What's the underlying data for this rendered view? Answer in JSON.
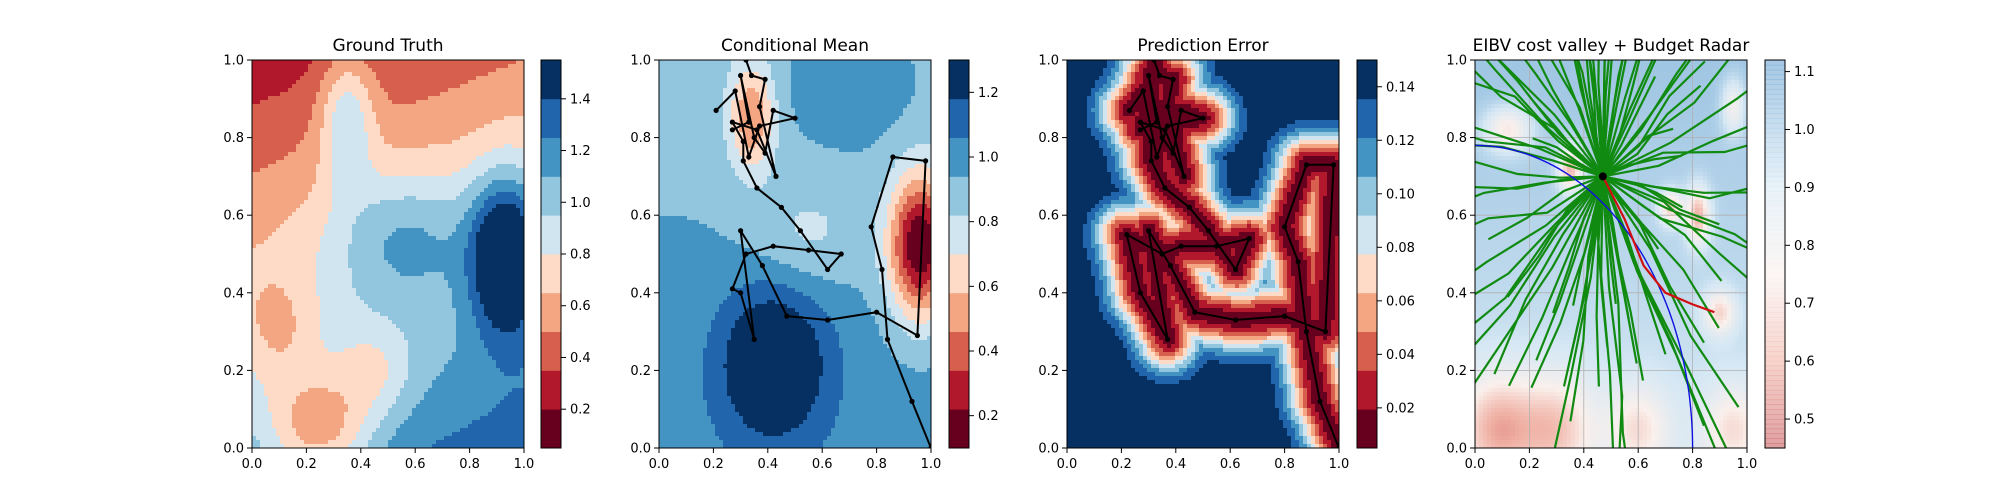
{
  "chart_data": [
    {
      "type": "heatmap",
      "title": "Ground Truth",
      "xlim": [
        0,
        1
      ],
      "ylim": [
        0,
        1
      ],
      "x_ticks": [
        "0.0",
        "0.2",
        "0.4",
        "0.6",
        "0.8",
        "1.0"
      ],
      "y_ticks": [
        "0.0",
        "0.2",
        "0.4",
        "0.6",
        "0.8",
        "1.0"
      ],
      "colorbar": {
        "range": [
          0.05,
          1.55
        ],
        "ticks": [
          0.2,
          0.4,
          0.6,
          0.8,
          1.0,
          1.2,
          1.4
        ],
        "tick_labels": [
          "0.2",
          "0.4",
          "0.6",
          "0.8",
          "1.0",
          "1.2",
          "1.4"
        ]
      },
      "field_kind": "truth",
      "path": []
    },
    {
      "type": "heatmap",
      "title": "Conditional Mean",
      "xlim": [
        0,
        1
      ],
      "ylim": [
        0,
        1
      ],
      "x_ticks": [
        "0.0",
        "0.2",
        "0.4",
        "0.6",
        "0.8",
        "1.0"
      ],
      "y_ticks": [
        "0.0",
        "0.2",
        "0.4",
        "0.6",
        "0.8",
        "1.0"
      ],
      "colorbar": {
        "range": [
          0.1,
          1.3
        ],
        "ticks": [
          0.2,
          0.4,
          0.6,
          0.8,
          1.0,
          1.2
        ],
        "tick_labels": [
          "0.2",
          "0.4",
          "0.6",
          "0.8",
          "1.0",
          "1.2"
        ]
      },
      "field_kind": "mean",
      "path": [
        [
          1.0,
          0.0
        ],
        [
          0.93,
          0.12
        ],
        [
          0.84,
          0.28
        ],
        [
          0.82,
          0.46
        ],
        [
          0.78,
          0.57
        ],
        [
          0.86,
          0.75
        ],
        [
          0.98,
          0.74
        ],
        [
          0.95,
          0.29
        ],
        [
          0.8,
          0.35
        ],
        [
          0.62,
          0.33
        ],
        [
          0.47,
          0.34
        ],
        [
          0.38,
          0.47
        ],
        [
          0.3,
          0.56
        ],
        [
          0.35,
          0.28
        ],
        [
          0.3,
          0.4
        ],
        [
          0.27,
          0.41
        ],
        [
          0.32,
          0.5
        ],
        [
          0.42,
          0.52
        ],
        [
          0.55,
          0.51
        ],
        [
          0.67,
          0.5
        ],
        [
          0.62,
          0.46
        ],
        [
          0.52,
          0.56
        ],
        [
          0.45,
          0.62
        ],
        [
          0.36,
          0.67
        ],
        [
          0.31,
          0.74
        ],
        [
          0.31,
          0.79
        ],
        [
          0.27,
          0.84
        ],
        [
          0.36,
          0.82
        ],
        [
          0.43,
          0.7
        ],
        [
          0.37,
          0.88
        ],
        [
          0.39,
          0.95
        ],
        [
          0.34,
          0.96
        ],
        [
          0.32,
          1.0
        ]
      ],
      "path2": [
        [
          0.21,
          0.87
        ],
        [
          0.28,
          0.92
        ],
        [
          0.33,
          0.75
        ],
        [
          0.37,
          0.83
        ],
        [
          0.5,
          0.85
        ],
        [
          0.42,
          0.87
        ],
        [
          0.39,
          0.76
        ],
        [
          0.35,
          0.8
        ],
        [
          0.3,
          0.96
        ],
        [
          0.33,
          0.84
        ],
        [
          0.27,
          0.82
        ]
      ]
    },
    {
      "type": "heatmap",
      "title": "Prediction Error",
      "xlim": [
        0,
        1
      ],
      "ylim": [
        0,
        1
      ],
      "x_ticks": [
        "0.0",
        "0.2",
        "0.4",
        "0.6",
        "0.8",
        "1.0"
      ],
      "y_ticks": [
        "0.0",
        "0.2",
        "0.4",
        "0.6",
        "0.8",
        "1.0"
      ],
      "colorbar": {
        "range": [
          0.005,
          0.15
        ],
        "ticks": [
          0.02,
          0.04,
          0.06,
          0.08,
          0.1,
          0.12,
          0.14
        ],
        "tick_labels": [
          "0.02",
          "0.04",
          "0.06",
          "0.08",
          "0.10",
          "0.12",
          "0.14"
        ]
      },
      "field_kind": "error",
      "path": [
        [
          1.0,
          0.0
        ],
        [
          0.93,
          0.12
        ],
        [
          0.88,
          0.3
        ],
        [
          0.85,
          0.48
        ],
        [
          0.8,
          0.57
        ],
        [
          0.88,
          0.73
        ],
        [
          0.98,
          0.73
        ],
        [
          0.95,
          0.3
        ],
        [
          0.8,
          0.34
        ],
        [
          0.62,
          0.33
        ],
        [
          0.47,
          0.35
        ],
        [
          0.38,
          0.47
        ],
        [
          0.3,
          0.56
        ],
        [
          0.37,
          0.28
        ],
        [
          0.27,
          0.4
        ],
        [
          0.22,
          0.55
        ],
        [
          0.35,
          0.5
        ],
        [
          0.42,
          0.52
        ],
        [
          0.55,
          0.52
        ],
        [
          0.67,
          0.54
        ],
        [
          0.62,
          0.46
        ],
        [
          0.52,
          0.56
        ],
        [
          0.45,
          0.62
        ],
        [
          0.36,
          0.67
        ],
        [
          0.31,
          0.74
        ],
        [
          0.31,
          0.79
        ],
        [
          0.27,
          0.84
        ],
        [
          0.36,
          0.82
        ],
        [
          0.43,
          0.7
        ],
        [
          0.37,
          0.88
        ],
        [
          0.39,
          0.95
        ],
        [
          0.34,
          0.96
        ],
        [
          0.32,
          1.0
        ]
      ],
      "path2": [
        [
          0.23,
          0.87
        ],
        [
          0.28,
          0.92
        ],
        [
          0.33,
          0.75
        ],
        [
          0.37,
          0.83
        ],
        [
          0.5,
          0.85
        ],
        [
          0.42,
          0.87
        ],
        [
          0.39,
          0.76
        ],
        [
          0.35,
          0.8
        ],
        [
          0.3,
          0.96
        ],
        [
          0.33,
          0.84
        ],
        [
          0.27,
          0.82
        ]
      ]
    },
    {
      "type": "heatmap",
      "title": "EIBV cost valley + Budget Radar",
      "xlim": [
        0,
        1
      ],
      "ylim": [
        0,
        1
      ],
      "x_ticks": [
        "0.0",
        "0.2",
        "0.4",
        "0.6",
        "0.8",
        "1.0"
      ],
      "y_ticks": [
        "0.0",
        "0.2",
        "0.4",
        "0.6",
        "0.8",
        "1.0"
      ],
      "colorbar": {
        "range": [
          0.45,
          1.12
        ],
        "ticks": [
          0.5,
          0.6,
          0.7,
          0.8,
          0.9,
          1.0,
          1.1
        ],
        "tick_labels": [
          "0.5",
          "0.6",
          "0.7",
          "0.8",
          "0.9",
          "1.0",
          "1.1"
        ]
      },
      "field_kind": "cost",
      "center": [
        0.47,
        0.7
      ],
      "red_path": [
        [
          0.47,
          0.7
        ],
        [
          0.55,
          0.59
        ],
        [
          0.62,
          0.47
        ],
        [
          0.7,
          0.4
        ],
        [
          0.8,
          0.37
        ],
        [
          0.88,
          0.35
        ]
      ],
      "blue_curve": "ellipse"
    }
  ]
}
